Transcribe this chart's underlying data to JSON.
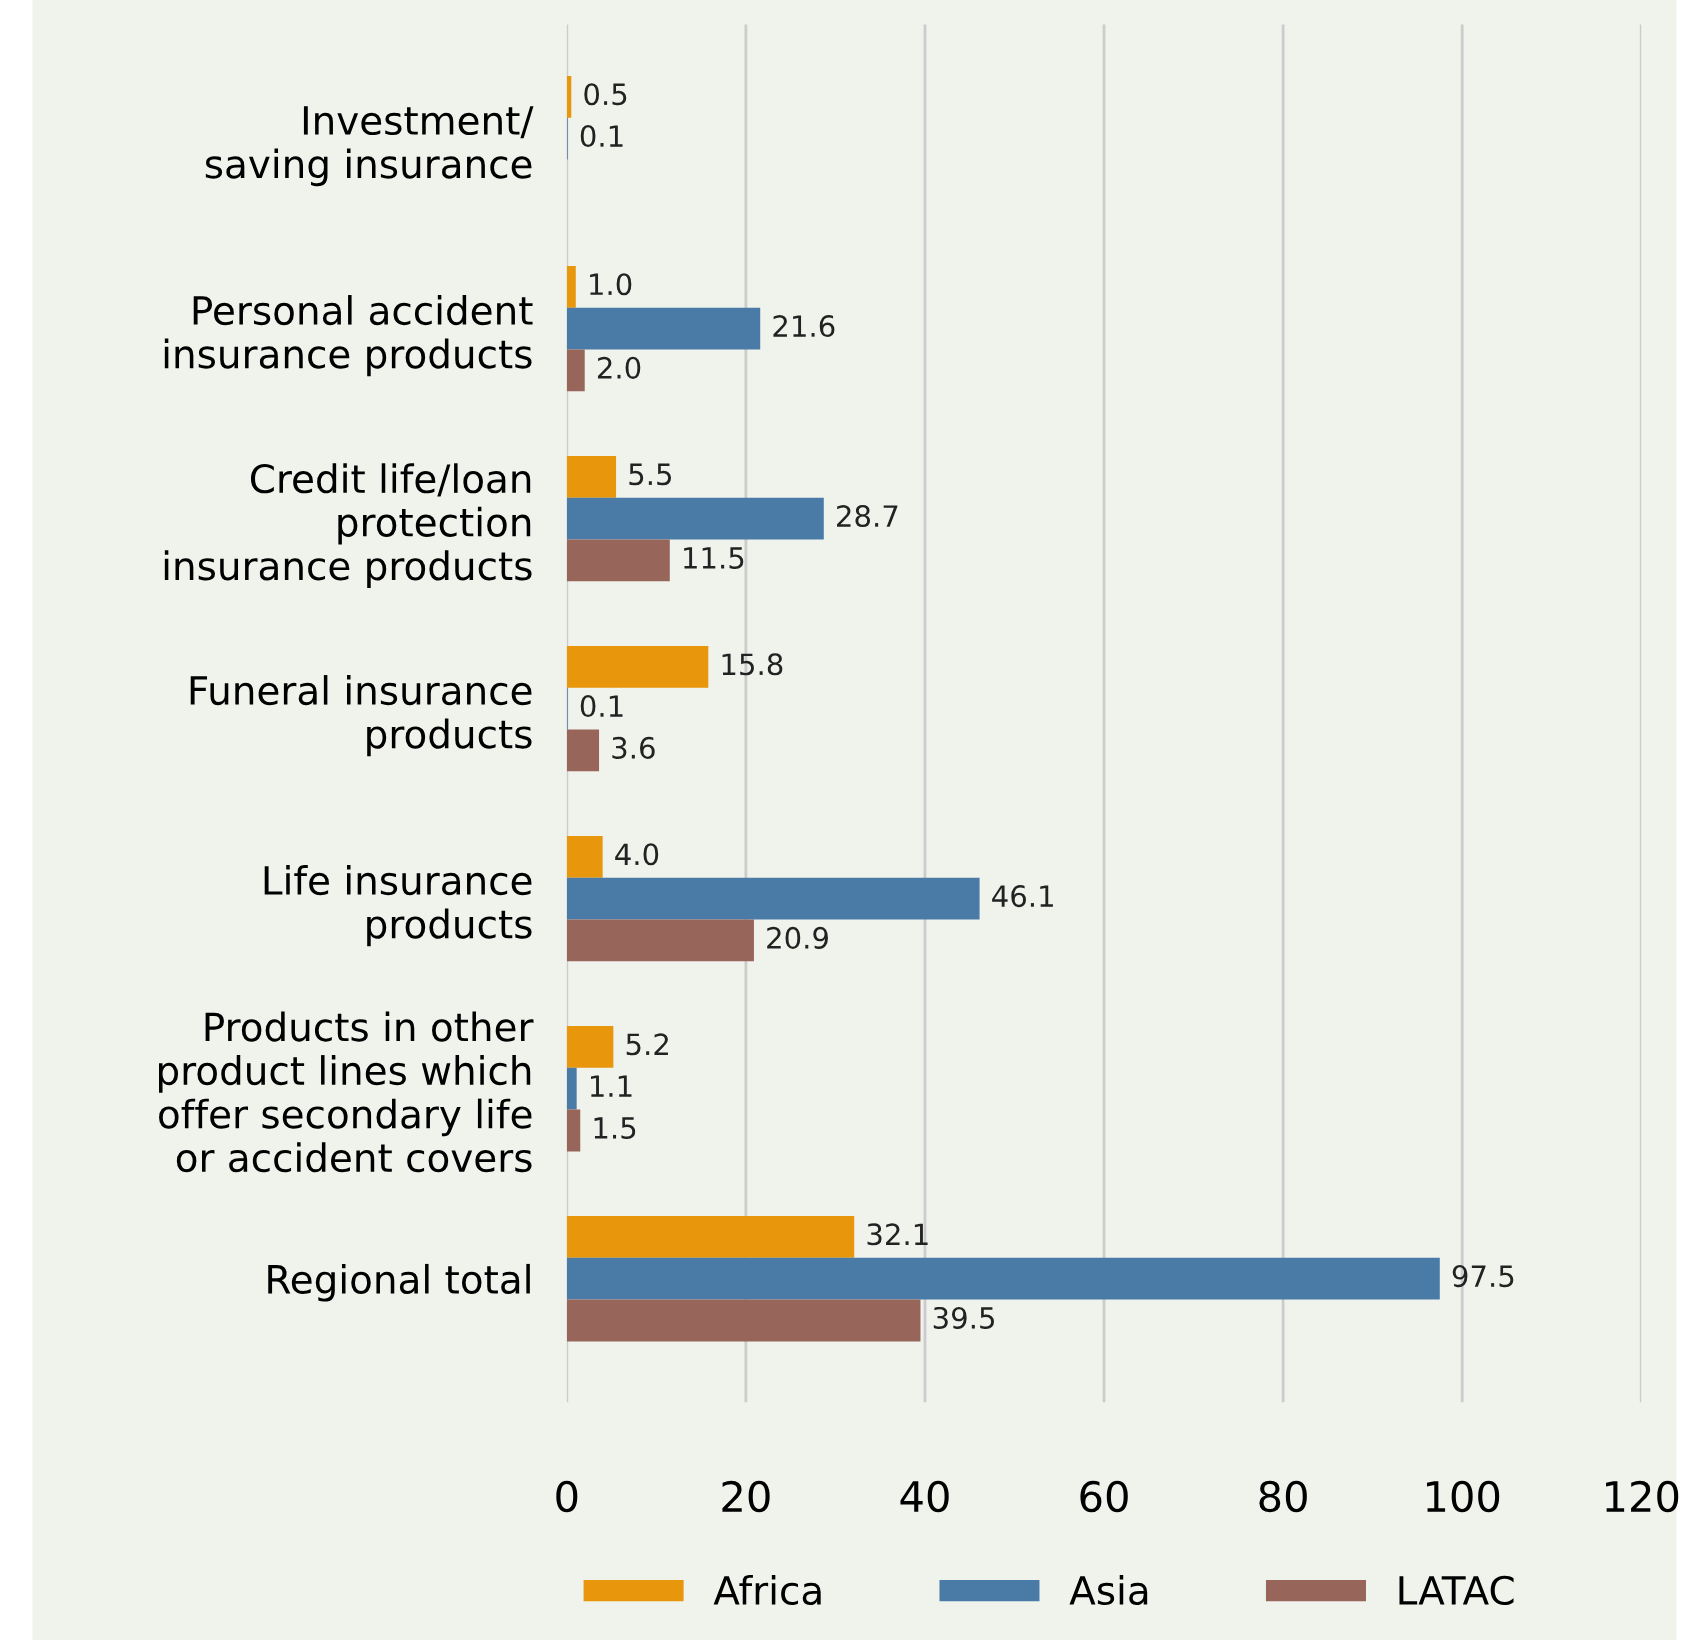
{
  "chart_data": {
    "type": "bar",
    "orientation": "horizontal",
    "categories": [
      "Investment/\nsaving insurance",
      "Personal accident\ninsurance products",
      "Credit life/loan\nprotection\ninsurance products",
      "Funeral insurance\nproducts",
      "Life insurance\nproducts",
      "Products in other\nproduct lines which\noffer secondary life\nor accident covers",
      "Regional total"
    ],
    "series": [
      {
        "name": "Africa",
        "color": "#e8960c",
        "values": [
          0.5,
          1.0,
          5.5,
          15.8,
          4.0,
          5.2,
          32.1
        ],
        "value_labels": [
          "0.5",
          "1.0",
          "5.5",
          "15.8",
          "4.0",
          "5.2",
          "32.1"
        ]
      },
      {
        "name": "Asia",
        "color": "#4a7ba7",
        "values": [
          0.1,
          21.6,
          28.7,
          0.1,
          46.1,
          1.1,
          97.5
        ],
        "value_labels": [
          "0.1",
          "21.6",
          "28.7",
          "0.1",
          "46.1",
          "1.1",
          "97.5"
        ]
      },
      {
        "name": "LATAC",
        "color": "#98655a",
        "values": [
          null,
          2.0,
          11.5,
          3.6,
          20.9,
          1.5,
          39.5
        ],
        "value_labels": [
          null,
          "2.0",
          "11.5",
          "3.6",
          "20.9",
          "1.5",
          "39.5"
        ]
      }
    ],
    "xlim": [
      0,
      120
    ],
    "xticks": [
      0,
      20,
      40,
      60,
      80,
      100,
      120
    ],
    "grid": "x",
    "legend": "bottom"
  }
}
